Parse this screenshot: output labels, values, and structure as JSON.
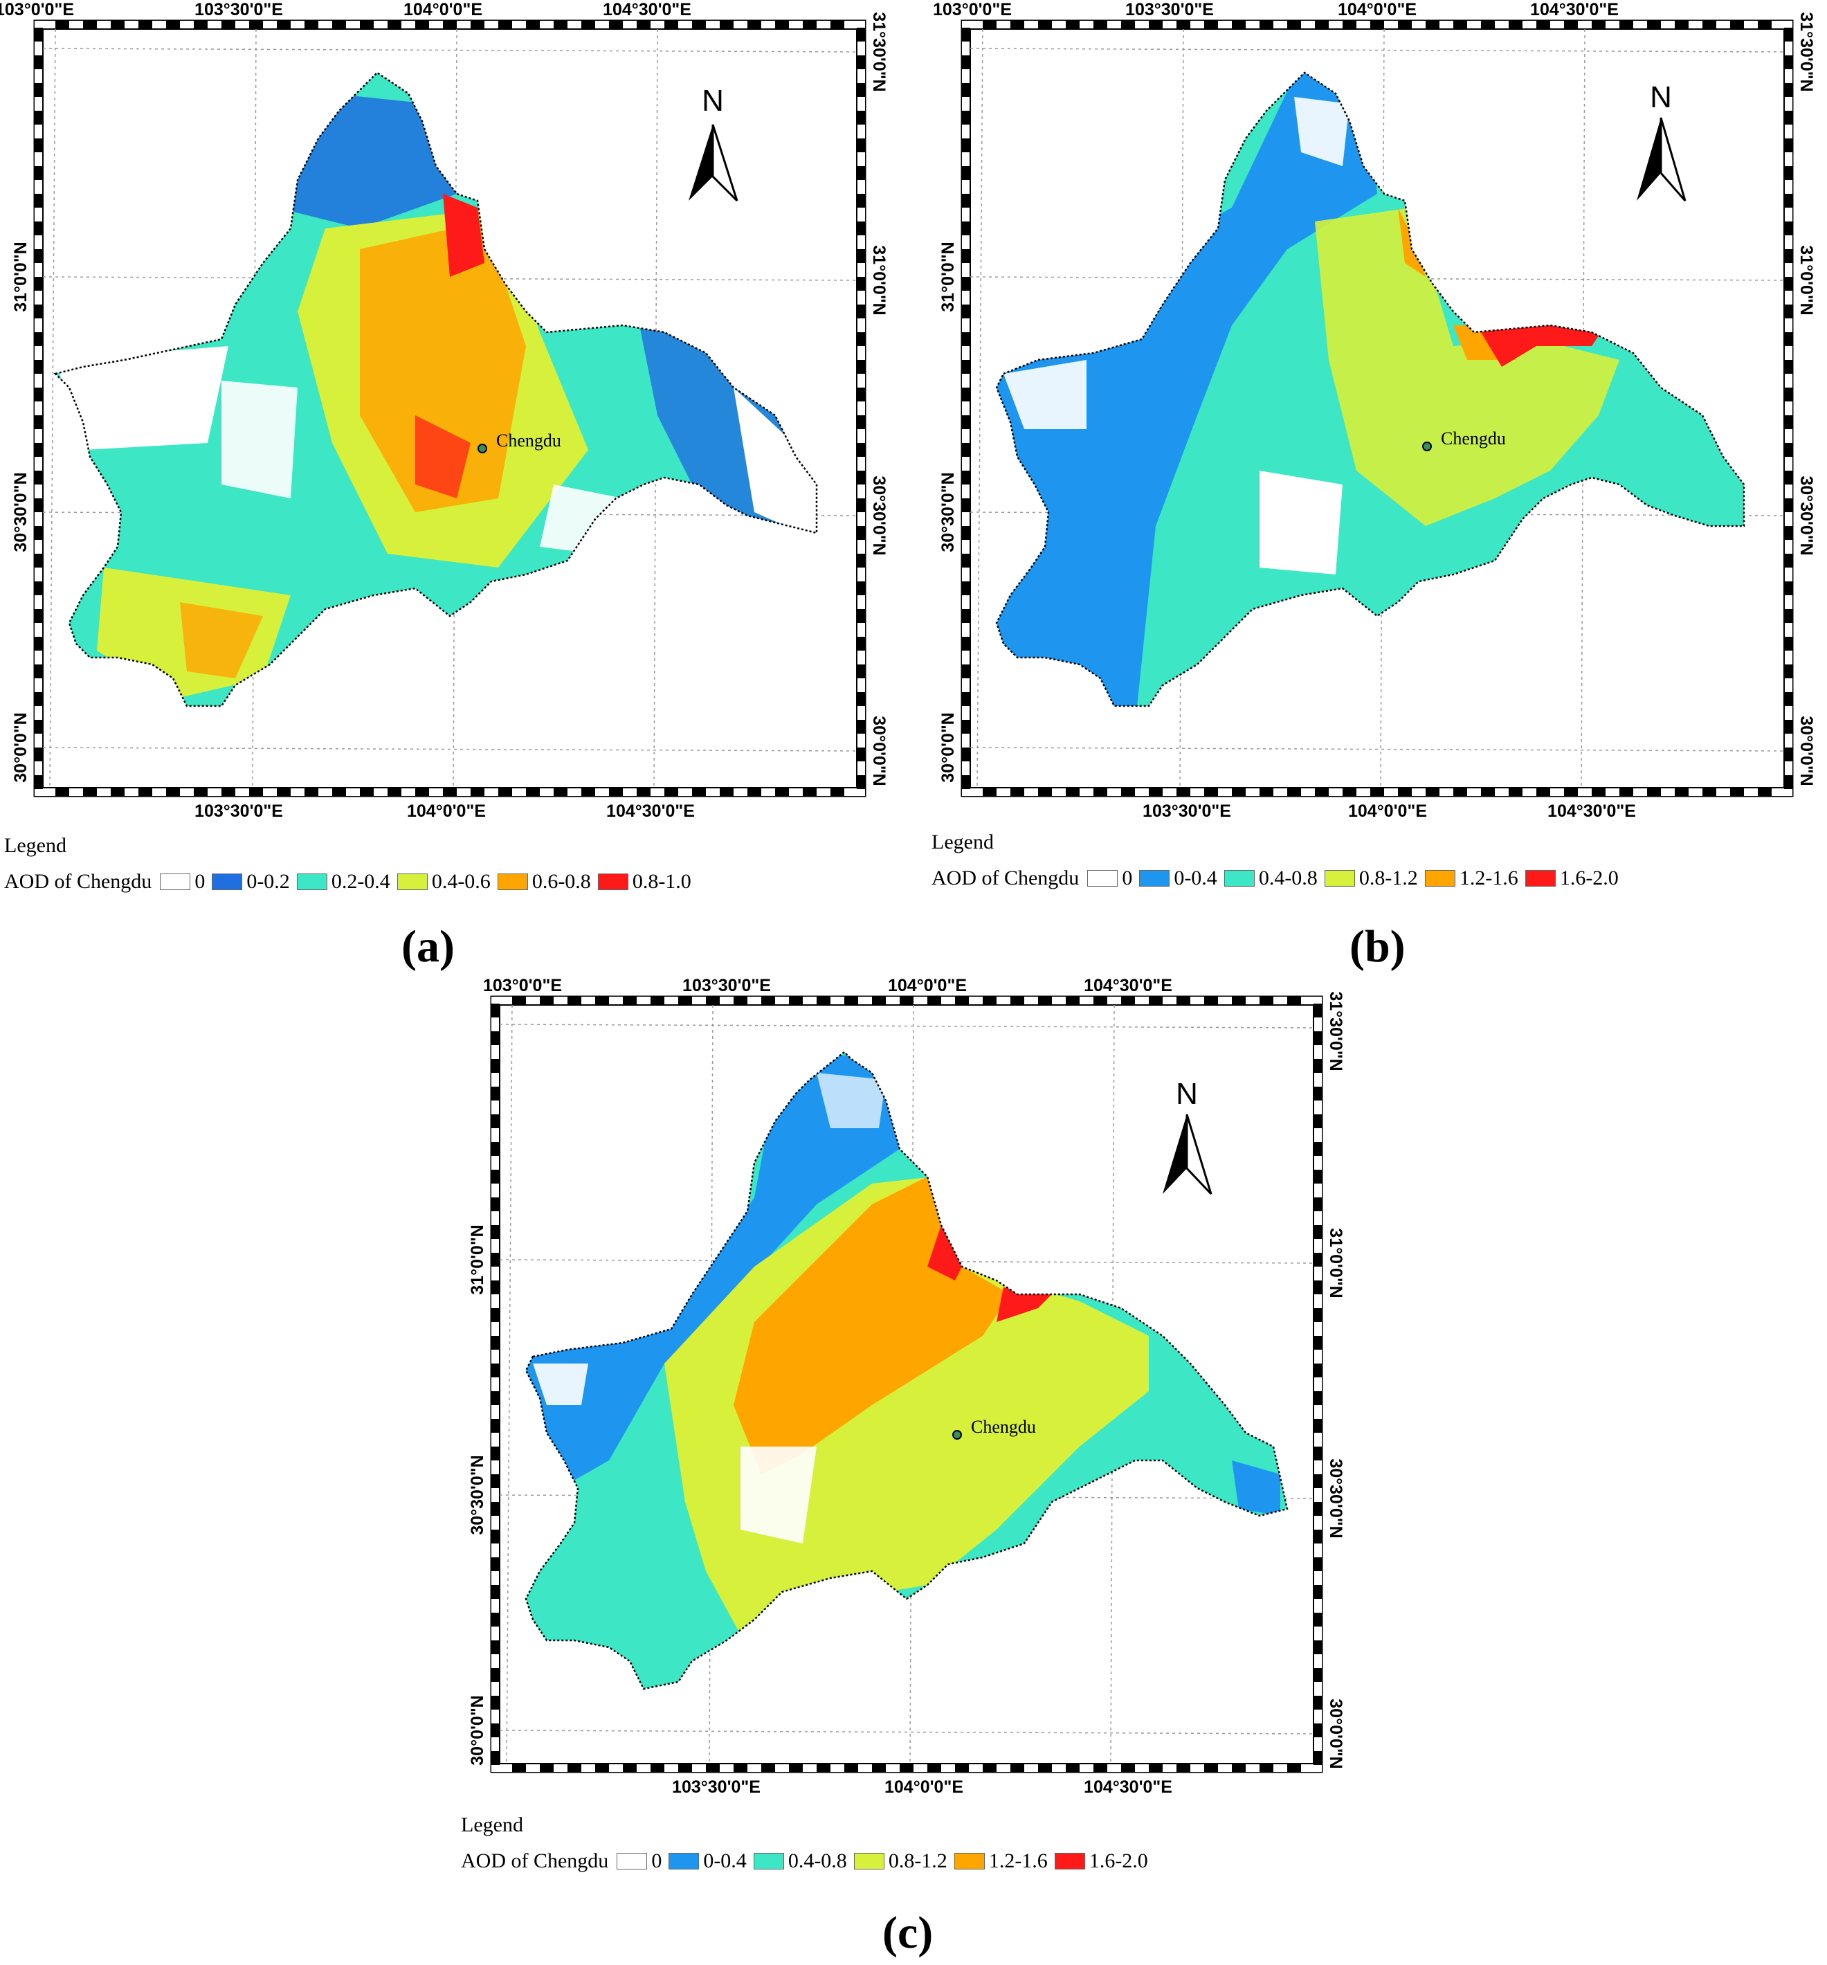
{
  "legend_title": "Legend",
  "legend_layer": "AOD of Chengdu",
  "place_label": "Chengdu",
  "north_label": "N",
  "lon_labels": [
    "103°0'0\"E",
    "103°30'0\"E",
    "104°0'0\"E",
    "104°30'0\"E"
  ],
  "lat_labels": [
    "31°30'0\"N",
    "31°0'0\"N",
    "30°30'0\"N",
    "30°0'0\"N"
  ],
  "panels": [
    {
      "id": "a",
      "label": "(a)",
      "classes": [
        {
          "range": "0",
          "color": "#ffffff"
        },
        {
          "range": "0-0.2",
          "color": "#1f6fe0"
        },
        {
          "range": "0.2-0.4",
          "color": "#3de6c4"
        },
        {
          "range": "0.4-0.6",
          "color": "#d6f03c"
        },
        {
          "range": "0.6-0.8",
          "color": "#ffa500"
        },
        {
          "range": "0.8-1.0",
          "color": "#ff1a1a"
        }
      ]
    },
    {
      "id": "b",
      "label": "(b)",
      "classes": [
        {
          "range": "0",
          "color": "#ffffff"
        },
        {
          "range": "0-0.4",
          "color": "#1e96f0"
        },
        {
          "range": "0.4-0.8",
          "color": "#3de6c4"
        },
        {
          "range": "0.8-1.2",
          "color": "#d6f03c"
        },
        {
          "range": "1.2-1.6",
          "color": "#ffa500"
        },
        {
          "range": "1.6-2.0",
          "color": "#ff1a1a"
        }
      ]
    },
    {
      "id": "c",
      "label": "(c)",
      "classes": [
        {
          "range": "0",
          "color": "#ffffff"
        },
        {
          "range": "0-0.4",
          "color": "#1e96f0"
        },
        {
          "range": "0.4-0.8",
          "color": "#3de6c4"
        },
        {
          "range": "0.8-1.2",
          "color": "#d6f03c"
        },
        {
          "range": "1.2-1.6",
          "color": "#ffa500"
        },
        {
          "range": "1.6-2.0",
          "color": "#ff1a1a"
        }
      ]
    }
  ]
}
